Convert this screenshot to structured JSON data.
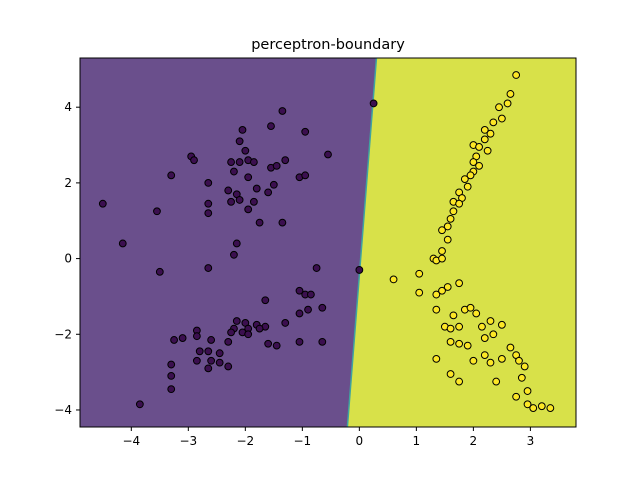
{
  "chart_data": {
    "type": "scatter",
    "title": "perceptron-boundary",
    "xlabel": "",
    "ylabel": "",
    "xlim": [
      -4.9,
      3.8
    ],
    "ylim": [
      -4.45,
      5.3
    ],
    "x_ticks": [
      -4,
      -3,
      -2,
      -1,
      0,
      1,
      2,
      3
    ],
    "y_ticks": [
      -4,
      -2,
      0,
      2,
      4
    ],
    "grid": false,
    "legend": "none",
    "colors": {
      "region_class0": "#6a4f8c",
      "region_class1": "#d8e149",
      "point_class0": "#3b0f4f",
      "point_class1": "#fde725",
      "point_edge": "#000000"
    },
    "decision_boundary": [
      [
        0.3,
        5.3
      ],
      [
        -0.21,
        -4.45
      ]
    ],
    "series": [
      {
        "class": 0,
        "points": [
          [
            -1.35,
            3.9
          ],
          [
            -2.05,
            3.4
          ],
          [
            -0.95,
            3.35
          ],
          [
            -2.1,
            3.1
          ],
          [
            -1.55,
            3.5
          ],
          [
            -0.55,
            2.75
          ],
          [
            -2.95,
            2.7
          ],
          [
            -2.9,
            2.6
          ],
          [
            -2.0,
            2.85
          ],
          [
            -2.25,
            2.55
          ],
          [
            -2.1,
            2.55
          ],
          [
            -1.95,
            2.6
          ],
          [
            -1.85,
            2.55
          ],
          [
            -1.55,
            2.4
          ],
          [
            -1.45,
            2.45
          ],
          [
            -1.3,
            2.6
          ],
          [
            -3.3,
            2.2
          ],
          [
            -2.2,
            2.3
          ],
          [
            -1.95,
            2.15
          ],
          [
            -1.05,
            2.15
          ],
          [
            -0.95,
            2.2
          ],
          [
            -2.65,
            2.0
          ],
          [
            -2.3,
            1.8
          ],
          [
            -2.15,
            1.7
          ],
          [
            -1.8,
            1.85
          ],
          [
            -1.5,
            1.95
          ],
          [
            -1.6,
            1.75
          ],
          [
            -2.25,
            1.5
          ],
          [
            -2.1,
            1.55
          ],
          [
            -1.85,
            1.5
          ],
          [
            -1.95,
            1.3
          ],
          [
            -2.65,
            1.45
          ],
          [
            -2.65,
            1.2
          ],
          [
            -1.75,
            0.95
          ],
          [
            -1.35,
            0.95
          ],
          [
            -3.55,
            1.25
          ],
          [
            -4.5,
            1.45
          ],
          [
            -4.15,
            0.4
          ],
          [
            -2.15,
            0.4
          ],
          [
            -2.2,
            0.1
          ],
          [
            -3.5,
            -0.35
          ],
          [
            -2.65,
            -0.25
          ],
          [
            -0.75,
            -0.25
          ],
          [
            0.25,
            4.1
          ],
          [
            0.0,
            -0.3
          ],
          [
            -1.05,
            -0.85
          ],
          [
            -0.95,
            -0.95
          ],
          [
            -0.85,
            -0.95
          ],
          [
            -1.65,
            -1.1
          ],
          [
            -0.65,
            -1.3
          ],
          [
            -0.9,
            -1.35
          ],
          [
            -1.05,
            -1.45
          ],
          [
            -2.15,
            -1.65
          ],
          [
            -2.0,
            -1.7
          ],
          [
            -1.8,
            -1.75
          ],
          [
            -1.65,
            -1.8
          ],
          [
            -1.3,
            -1.7
          ],
          [
            -2.2,
            -1.85
          ],
          [
            -2.05,
            -1.95
          ],
          [
            -1.95,
            -1.85
          ],
          [
            -1.75,
            -1.85
          ],
          [
            -2.85,
            -1.9
          ],
          [
            -2.25,
            -1.95
          ],
          [
            -1.95,
            -2.0
          ],
          [
            -1.05,
            -2.2
          ],
          [
            -2.85,
            -2.05
          ],
          [
            -2.3,
            -2.2
          ],
          [
            -3.25,
            -2.15
          ],
          [
            -3.1,
            -2.1
          ],
          [
            -2.6,
            -2.15
          ],
          [
            -1.6,
            -2.25
          ],
          [
            -1.45,
            -2.3
          ],
          [
            -0.65,
            -2.2
          ],
          [
            -2.8,
            -2.45
          ],
          [
            -2.65,
            -2.45
          ],
          [
            -2.45,
            -2.5
          ],
          [
            -3.3,
            -2.8
          ],
          [
            -2.85,
            -2.7
          ],
          [
            -2.6,
            -2.7
          ],
          [
            -2.45,
            -2.75
          ],
          [
            -2.65,
            -2.9
          ],
          [
            -2.3,
            -2.85
          ],
          [
            -3.3,
            -3.1
          ],
          [
            -3.3,
            -3.45
          ],
          [
            -3.85,
            -3.85
          ]
        ]
      },
      {
        "class": 1,
        "points": [
          [
            2.75,
            4.85
          ],
          [
            2.65,
            4.35
          ],
          [
            2.6,
            4.1
          ],
          [
            2.45,
            4.0
          ],
          [
            2.35,
            3.6
          ],
          [
            2.5,
            3.7
          ],
          [
            2.2,
            3.4
          ],
          [
            2.3,
            3.3
          ],
          [
            2.2,
            3.15
          ],
          [
            2.0,
            3.0
          ],
          [
            2.1,
            2.95
          ],
          [
            2.25,
            2.85
          ],
          [
            2.05,
            2.7
          ],
          [
            2.0,
            2.55
          ],
          [
            2.1,
            2.45
          ],
          [
            2.0,
            2.3
          ],
          [
            1.95,
            2.2
          ],
          [
            1.85,
            2.1
          ],
          [
            1.9,
            1.9
          ],
          [
            1.75,
            1.75
          ],
          [
            1.8,
            1.6
          ],
          [
            1.65,
            1.5
          ],
          [
            1.75,
            1.45
          ],
          [
            1.65,
            1.25
          ],
          [
            1.6,
            1.05
          ],
          [
            1.55,
            0.85
          ],
          [
            1.45,
            0.75
          ],
          [
            1.55,
            0.5
          ],
          [
            1.45,
            0.2
          ],
          [
            1.3,
            0.0
          ],
          [
            1.35,
            -0.05
          ],
          [
            1.45,
            0.0
          ],
          [
            1.05,
            -0.4
          ],
          [
            0.6,
            -0.55
          ],
          [
            1.55,
            -0.75
          ],
          [
            1.75,
            -0.65
          ],
          [
            1.45,
            -0.85
          ],
          [
            1.35,
            -0.95
          ],
          [
            1.05,
            -0.9
          ],
          [
            1.35,
            -1.35
          ],
          [
            1.85,
            -1.35
          ],
          [
            1.95,
            -1.3
          ],
          [
            2.05,
            -1.45
          ],
          [
            1.65,
            -1.5
          ],
          [
            1.5,
            -1.8
          ],
          [
            1.6,
            -1.85
          ],
          [
            1.75,
            -1.8
          ],
          [
            2.3,
            -1.65
          ],
          [
            2.15,
            -1.8
          ],
          [
            2.5,
            -1.75
          ],
          [
            2.35,
            -2.0
          ],
          [
            2.2,
            -2.1
          ],
          [
            1.6,
            -2.2
          ],
          [
            1.75,
            -2.25
          ],
          [
            1.9,
            -2.3
          ],
          [
            2.65,
            -2.35
          ],
          [
            2.2,
            -2.55
          ],
          [
            2.5,
            -2.65
          ],
          [
            2.0,
            -2.7
          ],
          [
            2.3,
            -2.75
          ],
          [
            2.75,
            -2.55
          ],
          [
            2.8,
            -2.7
          ],
          [
            2.9,
            -2.85
          ],
          [
            1.35,
            -2.65
          ],
          [
            1.6,
            -3.05
          ],
          [
            1.75,
            -3.25
          ],
          [
            2.4,
            -3.25
          ],
          [
            2.85,
            -3.15
          ],
          [
            2.95,
            -3.5
          ],
          [
            2.75,
            -3.65
          ],
          [
            2.95,
            -3.85
          ],
          [
            3.05,
            -3.95
          ],
          [
            3.2,
            -3.9
          ],
          [
            3.35,
            -3.95
          ]
        ]
      }
    ]
  }
}
